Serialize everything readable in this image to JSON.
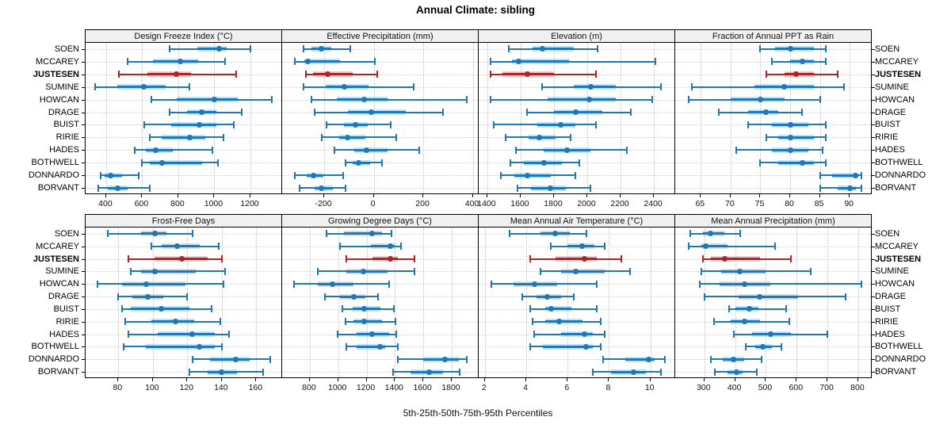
{
  "title": "Annual Climate: sibling",
  "caption": "5th-25th-50th-75th-95th Percentiles",
  "percentile_labels": [
    "5th",
    "25th",
    "50th",
    "75th",
    "95th"
  ],
  "sites": [
    "SOEN",
    "MCCAREY",
    "JUSTESEN",
    "SUMINE",
    "HOWCAN",
    "DRAGE",
    "BUIST",
    "RIRIE",
    "HADES",
    "BOTHWELL",
    "DONNARDO",
    "BORVANT"
  ],
  "highlight_site": "JUSTESEN",
  "colors": {
    "series": "#1f77b4",
    "series_light": "#9ecae1",
    "highlight": "#b22222",
    "highlight_light": "#e4a3a3",
    "grid": "#c3c3c3",
    "strip_bg": "#f0f0f0",
    "panel_border": "#000000"
  },
  "chart_data": [
    {
      "type": "interval-dotplot",
      "title": "Design Freeze Index (°C)",
      "row": 0,
      "col": 0,
      "xlim": [
        286,
        1376
      ],
      "ticks": [
        400,
        600,
        800,
        1000,
        1200
      ],
      "series": [
        {
          "site": "SOEN",
          "p": [
            750,
            905,
            1025,
            1070,
            1200
          ]
        },
        {
          "site": "MCCAREY",
          "p": [
            520,
            660,
            810,
            910,
            1060
          ]
        },
        {
          "site": "JUSTESEN",
          "p": [
            470,
            630,
            790,
            870,
            1120
          ]
        },
        {
          "site": "SUMINE",
          "p": [
            340,
            460,
            610,
            730,
            860
          ]
        },
        {
          "site": "HOWCAN",
          "p": [
            650,
            790,
            1000,
            1130,
            1320
          ]
        },
        {
          "site": "DRAGE",
          "p": [
            750,
            850,
            930,
            1010,
            1150
          ]
        },
        {
          "site": "BUIST",
          "p": [
            610,
            760,
            915,
            1010,
            1110
          ]
        },
        {
          "site": "RIRIE",
          "p": [
            640,
            710,
            865,
            950,
            1050
          ]
        },
        {
          "site": "HADES",
          "p": [
            558,
            620,
            673,
            770,
            990
          ]
        },
        {
          "site": "BOTHWELL",
          "p": [
            598,
            640,
            711,
            930,
            1019
          ]
        },
        {
          "site": "DONNARDO",
          "p": [
            370,
            390,
            425,
            490,
            580
          ]
        },
        {
          "site": "BORVANT",
          "p": [
            355,
            410,
            465,
            520,
            640
          ]
        }
      ]
    },
    {
      "type": "interval-dotplot",
      "title": "Effective Precipitation (mm)",
      "row": 0,
      "col": 1,
      "xlim": [
        -370,
        424
      ],
      "ticks": [
        -200,
        0,
        200,
        400
      ],
      "series": [
        {
          "site": "SOEN",
          "p": [
            -285,
            -250,
            -210,
            -170,
            -95
          ]
        },
        {
          "site": "MCCAREY",
          "p": [
            -320,
            -280,
            -265,
            -135,
            5
          ]
        },
        {
          "site": "JUSTESEN",
          "p": [
            -275,
            -245,
            -185,
            -85,
            15
          ]
        },
        {
          "site": "SUMINE",
          "p": [
            -285,
            -195,
            -120,
            -20,
            160
          ]
        },
        {
          "site": "HOWCAN",
          "p": [
            -250,
            -150,
            -40,
            55,
            375
          ]
        },
        {
          "site": "DRAGE",
          "p": [
            -240,
            -105,
            -10,
            130,
            280
          ]
        },
        {
          "site": "BUIST",
          "p": [
            -190,
            -120,
            -75,
            -25,
            70
          ]
        },
        {
          "site": "RIRIE",
          "p": [
            -210,
            -140,
            -105,
            -35,
            90
          ]
        },
        {
          "site": "HADES",
          "p": [
            -160,
            -80,
            -30,
            55,
            185
          ]
        },
        {
          "site": "BOTHWELL",
          "p": [
            -115,
            -85,
            -60,
            -15,
            35
          ]
        },
        {
          "site": "DONNARDO",
          "p": [
            -320,
            -270,
            -245,
            -205,
            -125
          ]
        },
        {
          "site": "BORVANT",
          "p": [
            -300,
            -240,
            -210,
            -165,
            -115
          ]
        }
      ]
    },
    {
      "type": "interval-dotplot",
      "title": "Elevation (m)",
      "row": 0,
      "col": 2,
      "xlim": [
        1348,
        2528
      ],
      "ticks": [
        1400,
        1600,
        1800,
        2000,
        2200,
        2400
      ],
      "series": [
        {
          "site": "SOEN",
          "p": [
            1530,
            1670,
            1730,
            1920,
            2060
          ]
        },
        {
          "site": "MCCAREY",
          "p": [
            1420,
            1550,
            1590,
            1890,
            2410
          ]
        },
        {
          "site": "JUSTESEN",
          "p": [
            1420,
            1490,
            1640,
            1800,
            2050
          ]
        },
        {
          "site": "SUMINE",
          "p": [
            1730,
            1920,
            2020,
            2170,
            2440
          ]
        },
        {
          "site": "HOWCAN",
          "p": [
            1420,
            1760,
            2010,
            2170,
            2390
          ]
        },
        {
          "site": "DRAGE",
          "p": [
            1640,
            1800,
            1930,
            2090,
            2260
          ]
        },
        {
          "site": "BUIST",
          "p": [
            1440,
            1700,
            1840,
            1930,
            2050
          ]
        },
        {
          "site": "RIRIE",
          "p": [
            1510,
            1650,
            1710,
            1810,
            1900
          ]
        },
        {
          "site": "HADES",
          "p": [
            1570,
            1740,
            1880,
            2020,
            2240
          ]
        },
        {
          "site": "BOTHWELL",
          "p": [
            1540,
            1620,
            1740,
            1850,
            1950
          ]
        },
        {
          "site": "DONNARDO",
          "p": [
            1480,
            1560,
            1640,
            1780,
            1930
          ]
        },
        {
          "site": "BORVANT",
          "p": [
            1580,
            1660,
            1780,
            1870,
            2020
          ]
        }
      ]
    },
    {
      "type": "interval-dotplot",
      "title": "Fraction of Annual PPT as Rain",
      "row": 0,
      "col": 3,
      "xlim": [
        60.7,
        93.7
      ],
      "ticks": [
        65,
        70,
        75,
        80,
        85,
        90
      ],
      "series": [
        {
          "site": "SOEN",
          "p": [
            75,
            77.5,
            80,
            84,
            86
          ]
        },
        {
          "site": "MCCAREY",
          "p": [
            77,
            80,
            82,
            84,
            86
          ]
        },
        {
          "site": "JUSTESEN",
          "p": [
            76,
            79,
            81,
            84,
            88
          ]
        },
        {
          "site": "SUMINE",
          "p": [
            63.5,
            74,
            79,
            84,
            89
          ]
        },
        {
          "site": "HOWCAN",
          "p": [
            63,
            70,
            75,
            79,
            85
          ]
        },
        {
          "site": "DRAGE",
          "p": [
            68,
            73,
            76,
            78,
            82
          ]
        },
        {
          "site": "BUIST",
          "p": [
            73,
            77,
            80,
            83,
            86
          ]
        },
        {
          "site": "RIRIE",
          "p": [
            76,
            78,
            80,
            84,
            86
          ]
        },
        {
          "site": "HADES",
          "p": [
            71,
            77,
            80,
            83,
            85.5
          ]
        },
        {
          "site": "BOTHWELL",
          "p": [
            75,
            78,
            82,
            84,
            86
          ]
        },
        {
          "site": "DONNARDO",
          "p": [
            85,
            87,
            91,
            91.5,
            92
          ]
        },
        {
          "site": "BORVANT",
          "p": [
            85,
            88,
            90,
            91,
            92
          ]
        }
      ]
    },
    {
      "type": "interval-dotplot",
      "title": "Frost-Free Days",
      "row": 1,
      "col": 0,
      "xlim": [
        61,
        175
      ],
      "ticks": [
        80,
        100,
        120,
        140,
        160
      ],
      "series": [
        {
          "site": "SOEN",
          "p": [
            74,
            93,
            101,
            108,
            123
          ]
        },
        {
          "site": "MCCAREY",
          "p": [
            99,
            105,
            114,
            127,
            138
          ]
        },
        {
          "site": "JUSTESEN",
          "p": [
            86,
            101,
            117,
            132,
            140
          ]
        },
        {
          "site": "SUMINE",
          "p": [
            87,
            93,
            101,
            125,
            142
          ]
        },
        {
          "site": "HOWCAN",
          "p": [
            68,
            82,
            96,
            119,
            141
          ]
        },
        {
          "site": "DRAGE",
          "p": [
            80,
            88,
            97,
            106,
            120
          ]
        },
        {
          "site": "BUIST",
          "p": [
            82,
            87,
            105,
            121,
            134
          ]
        },
        {
          "site": "RIRIE",
          "p": [
            84,
            99,
            113,
            124,
            139
          ]
        },
        {
          "site": "HADES",
          "p": [
            86,
            103,
            123,
            136,
            144
          ]
        },
        {
          "site": "BOTHWELL",
          "p": [
            83,
            96,
            127,
            136,
            140
          ]
        },
        {
          "site": "DONNARDO",
          "p": [
            123,
            133,
            148,
            156,
            168
          ]
        },
        {
          "site": "BORVANT",
          "p": [
            121,
            132,
            140,
            149,
            164
          ]
        }
      ]
    },
    {
      "type": "interval-dotplot",
      "title": "Growing Degree Days (°C)",
      "row": 1,
      "col": 1,
      "xlim": [
        605,
        1990
      ],
      "ticks": [
        800,
        1000,
        1200,
        1400,
        1600,
        1800
      ],
      "series": [
        {
          "site": "SOEN",
          "p": [
            915,
            1040,
            1240,
            1310,
            1375
          ]
        },
        {
          "site": "MCCAREY",
          "p": [
            1010,
            1230,
            1365,
            1400,
            1440
          ]
        },
        {
          "site": "JUSTESEN",
          "p": [
            1055,
            1240,
            1365,
            1420,
            1540
          ]
        },
        {
          "site": "SUMINE",
          "p": [
            855,
            1060,
            1180,
            1350,
            1540
          ]
        },
        {
          "site": "HOWCAN",
          "p": [
            690,
            855,
            960,
            1110,
            1360
          ]
        },
        {
          "site": "DRAGE",
          "p": [
            905,
            1010,
            1110,
            1190,
            1280
          ]
        },
        {
          "site": "BUIST",
          "p": [
            1030,
            1100,
            1185,
            1300,
            1390
          ]
        },
        {
          "site": "RIRIE",
          "p": [
            1050,
            1110,
            1185,
            1310,
            1405
          ]
        },
        {
          "site": "HADES",
          "p": [
            995,
            1130,
            1240,
            1360,
            1410
          ]
        },
        {
          "site": "BOTHWELL",
          "p": [
            1055,
            1130,
            1295,
            1330,
            1420
          ]
        },
        {
          "site": "DONNARDO",
          "p": [
            1420,
            1600,
            1750,
            1850,
            1905
          ]
        },
        {
          "site": "BORVANT",
          "p": [
            1385,
            1510,
            1640,
            1740,
            1855
          ]
        }
      ]
    },
    {
      "type": "interval-dotplot",
      "title": "Mean Annual Air Temperature (°C)",
      "row": 1,
      "col": 2,
      "xlim": [
        1.7,
        11.2
      ],
      "ticks": [
        2,
        4,
        6,
        8,
        10
      ],
      "series": [
        {
          "site": "SOEN",
          "p": [
            3.2,
            4.7,
            5.4,
            6.1,
            6.9
          ]
        },
        {
          "site": "MCCAREY",
          "p": [
            5.2,
            6.0,
            6.7,
            7.3,
            7.8
          ]
        },
        {
          "site": "JUSTESEN",
          "p": [
            4.2,
            5.4,
            6.8,
            7.4,
            8.6
          ]
        },
        {
          "site": "SUMINE",
          "p": [
            4.7,
            5.7,
            6.4,
            7.8,
            9.0
          ]
        },
        {
          "site": "HOWCAN",
          "p": [
            2.3,
            3.4,
            4.4,
            5.5,
            7.4
          ]
        },
        {
          "site": "DRAGE",
          "p": [
            3.8,
            4.5,
            5.0,
            5.7,
            6.3
          ]
        },
        {
          "site": "BUIST",
          "p": [
            4.2,
            4.9,
            5.2,
            6.2,
            7.4
          ]
        },
        {
          "site": "RIRIE",
          "p": [
            4.3,
            4.9,
            5.6,
            6.7,
            7.6
          ]
        },
        {
          "site": "HADES",
          "p": [
            4.4,
            5.7,
            6.8,
            7.2,
            7.8
          ]
        },
        {
          "site": "BOTHWELL",
          "p": [
            4.2,
            4.8,
            6.9,
            7.2,
            7.6
          ]
        },
        {
          "site": "DONNARDO",
          "p": [
            7.7,
            8.8,
            9.9,
            10.2,
            10.7
          ]
        },
        {
          "site": "BORVANT",
          "p": [
            7.2,
            8.1,
            9.2,
            9.8,
            10.5
          ]
        }
      ]
    },
    {
      "type": "interval-dotplot",
      "title": "Mean Annual Precipitation (mm)",
      "row": 1,
      "col": 3,
      "xlim": [
        205,
        844
      ],
      "ticks": [
        300,
        400,
        500,
        600,
        700,
        800
      ],
      "series": [
        {
          "site": "SOEN",
          "p": [
            255,
            295,
            320,
            365,
            415
          ]
        },
        {
          "site": "MCCAREY",
          "p": [
            250,
            290,
            305,
            375,
            530
          ]
        },
        {
          "site": "JUSTESEN",
          "p": [
            295,
            320,
            365,
            480,
            580
          ]
        },
        {
          "site": "SUMINE",
          "p": [
            290,
            355,
            415,
            500,
            645
          ]
        },
        {
          "site": "HOWCAN",
          "p": [
            285,
            350,
            430,
            515,
            810
          ]
        },
        {
          "site": "DRAGE",
          "p": [
            300,
            410,
            480,
            605,
            760
          ]
        },
        {
          "site": "BUIST",
          "p": [
            380,
            400,
            445,
            475,
            565
          ]
        },
        {
          "site": "RIRIE",
          "p": [
            330,
            385,
            430,
            480,
            575
          ]
        },
        {
          "site": "HADES",
          "p": [
            395,
            455,
            515,
            580,
            700
          ]
        },
        {
          "site": "BOTHWELL",
          "p": [
            435,
            465,
            490,
            520,
            550
          ]
        },
        {
          "site": "DONNARDO",
          "p": [
            320,
            360,
            395,
            430,
            485
          ]
        },
        {
          "site": "BORVANT",
          "p": [
            335,
            375,
            405,
            425,
            470
          ]
        }
      ]
    }
  ]
}
